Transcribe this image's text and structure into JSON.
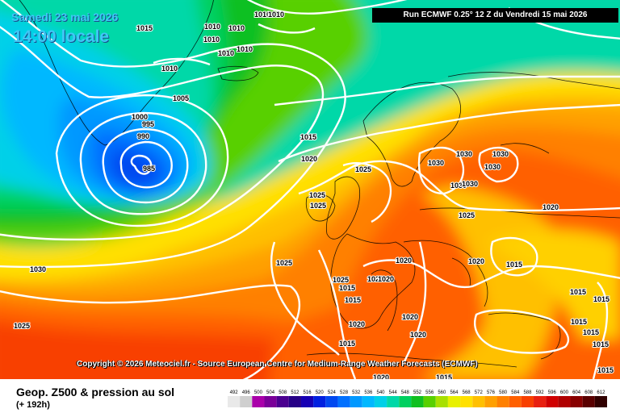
{
  "header": {
    "date": "Samedi 23 mai 2026",
    "local_time": "14:00 locale",
    "run": "Run ECMWF 0.25° 12 Z du Vendredi 15 mai 2026"
  },
  "copyright": "Copyright © 2026 Meteociel.fr - Source European Centre for Medium-Range Weather Forecasts (ECMWF)",
  "product": {
    "title": "Geop. Z500 & pression au sol",
    "lead": "(+ 192h)"
  },
  "colorbar": {
    "labels": [
      "492",
      "496",
      "500",
      "504",
      "508",
      "512",
      "516",
      "520",
      "524",
      "528",
      "532",
      "536",
      "540",
      "544",
      "548",
      "552",
      "556",
      "560",
      "564",
      "568",
      "572",
      "576",
      "580",
      "584",
      "588",
      "592",
      "596",
      "600",
      "604",
      "608",
      "612"
    ],
    "colors": [
      "#e9e9e9",
      "#cfcfcf",
      "#aa00aa",
      "#7a0099",
      "#4b0090",
      "#260086",
      "#1600b4",
      "#0020e0",
      "#0048f0",
      "#0070ff",
      "#0098ff",
      "#00b8ff",
      "#00d0e8",
      "#00d8a8",
      "#00d060",
      "#10c020",
      "#58d000",
      "#a8e000",
      "#e8f000",
      "#ffe000",
      "#ffc000",
      "#ffa000",
      "#ff8000",
      "#ff6000",
      "#f84000",
      "#e82010",
      "#d00000",
      "#b00000",
      "#880000",
      "#5a0000",
      "#300000"
    ]
  },
  "isobars": [
    {
      "value": "1010"
    },
    {
      "value": "1010"
    },
    {
      "value": "1010"
    },
    {
      "value": "1010"
    },
    {
      "value": "1010"
    },
    {
      "value": "1010"
    },
    {
      "value": "1010"
    },
    {
      "value": "1010"
    },
    {
      "value": "1015"
    },
    {
      "value": "1005"
    },
    {
      "value": "1000"
    },
    {
      "value": "995"
    },
    {
      "value": "990"
    },
    {
      "value": "985"
    },
    {
      "value": "1015"
    },
    {
      "value": "1020"
    },
    {
      "value": "1025"
    },
    {
      "value": "1025"
    },
    {
      "value": "1025"
    },
    {
      "value": "1025"
    },
    {
      "value": "1030"
    },
    {
      "value": "1030"
    },
    {
      "value": "1030"
    },
    {
      "value": "1030"
    },
    {
      "value": "1030"
    },
    {
      "value": "1030"
    },
    {
      "value": "1025"
    },
    {
      "value": "1020"
    },
    {
      "value": "1030"
    },
    {
      "value": "1025"
    },
    {
      "value": "1025"
    },
    {
      "value": "1020"
    },
    {
      "value": "1015"
    },
    {
      "value": "1020"
    },
    {
      "value": "1020"
    },
    {
      "value": "1020"
    },
    {
      "value": "1015"
    },
    {
      "value": "1015"
    },
    {
      "value": "1020"
    },
    {
      "value": "1020"
    },
    {
      "value": "1020"
    },
    {
      "value": "1015"
    },
    {
      "value": "1015"
    },
    {
      "value": "1015"
    },
    {
      "value": "1015"
    },
    {
      "value": "1015"
    },
    {
      "value": "1015"
    },
    {
      "value": "1015"
    },
    {
      "value": "1020"
    },
    {
      "value": "1015"
    }
  ]
}
